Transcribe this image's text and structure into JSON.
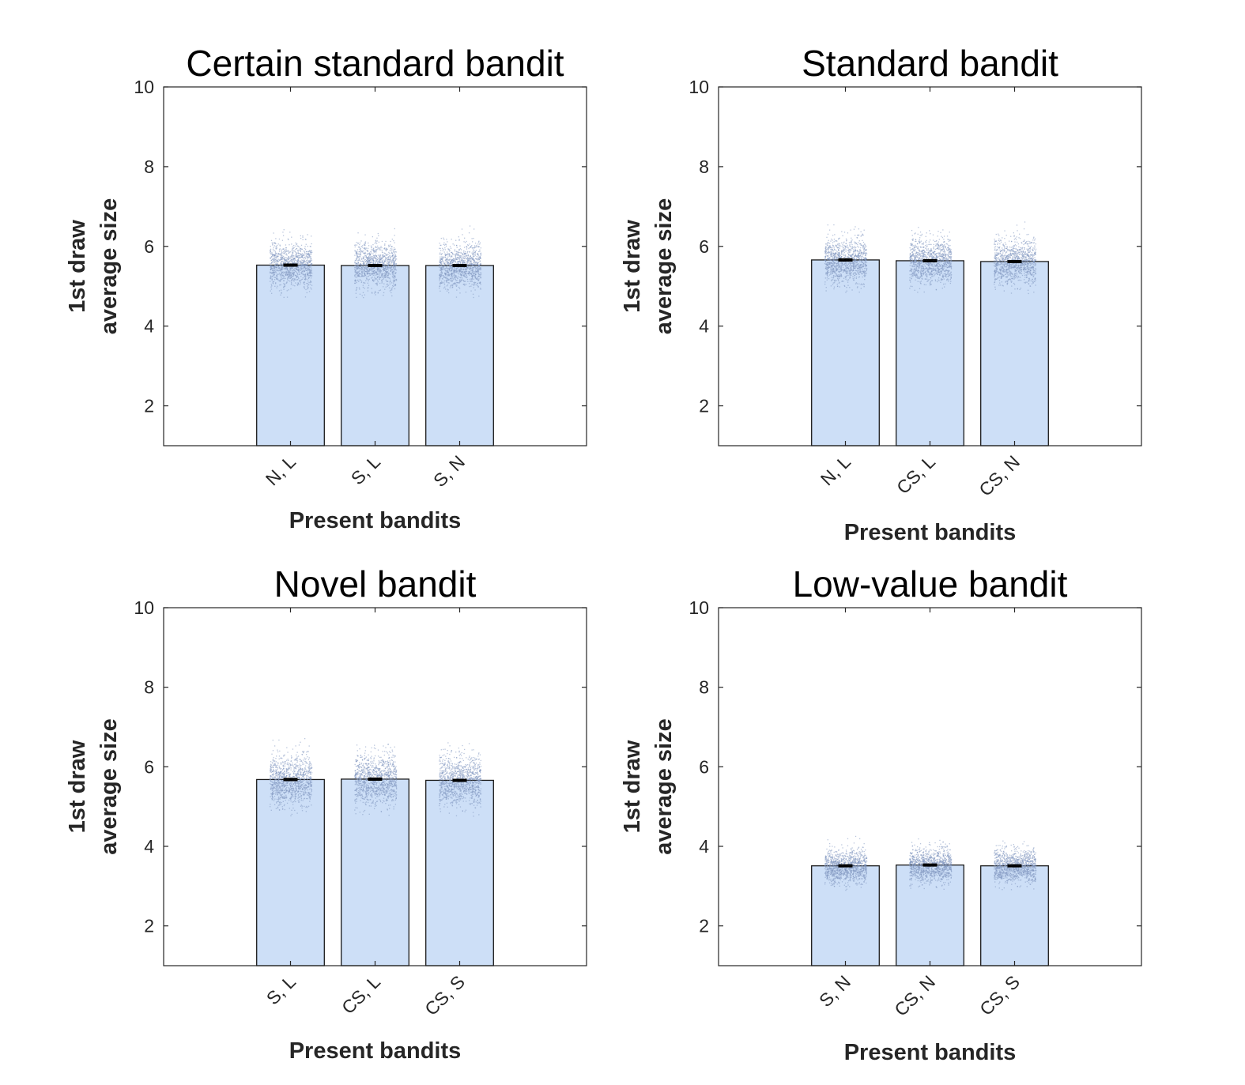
{
  "chart_data": [
    {
      "type": "bar",
      "title": "Certain standard bandit",
      "xlabel": "Present bandits",
      "ylabel": [
        "1st draw",
        "average size"
      ],
      "categories": [
        "N, L",
        "S, L",
        "S, N"
      ],
      "values": [
        5.53,
        5.52,
        5.52
      ],
      "error": [
        0.02,
        0.02,
        0.02
      ],
      "scatter_spread": [
        0.8,
        0.8,
        0.8
      ],
      "ylim": [
        1,
        10
      ],
      "yticks": [
        2,
        4,
        6,
        8,
        10
      ]
    },
    {
      "type": "bar",
      "title": "Standard bandit",
      "xlabel": "Present bandits",
      "ylabel": [
        "1st draw",
        "average size"
      ],
      "categories": [
        "N, L",
        "CS, L",
        "CS, N"
      ],
      "values": [
        5.66,
        5.64,
        5.62
      ],
      "error": [
        0.02,
        0.02,
        0.02
      ],
      "scatter_spread": [
        0.8,
        0.8,
        0.8
      ],
      "ylim": [
        1,
        10
      ],
      "yticks": [
        2,
        4,
        6,
        8,
        10
      ]
    },
    {
      "type": "bar",
      "title": "Novel bandit",
      "xlabel": "Present bandits",
      "ylabel": [
        "1st draw",
        "average size"
      ],
      "categories": [
        "S, L",
        "CS, L",
        "CS, S"
      ],
      "values": [
        5.68,
        5.69,
        5.66
      ],
      "error": [
        0.02,
        0.02,
        0.02
      ],
      "scatter_spread": [
        0.9,
        0.9,
        0.9
      ],
      "ylim": [
        1,
        10
      ],
      "yticks": [
        2,
        4,
        6,
        8,
        10
      ]
    },
    {
      "type": "bar",
      "title": "Low-value bandit",
      "xlabel": "Present bandits",
      "ylabel": [
        "1st draw",
        "average size"
      ],
      "categories": [
        "S, N",
        "CS, N",
        "CS, S"
      ],
      "values": [
        3.51,
        3.53,
        3.51
      ],
      "error": [
        0.02,
        0.02,
        0.02
      ],
      "scatter_spread": [
        0.6,
        0.6,
        0.6
      ],
      "ylim": [
        1,
        10
      ],
      "yticks": [
        2,
        4,
        6,
        8,
        10
      ]
    }
  ],
  "colors": {
    "bar_fill": "#cddff7",
    "bar_edge": "#1a1a1a",
    "dots": "#7f95bf",
    "axis": "#262626"
  }
}
